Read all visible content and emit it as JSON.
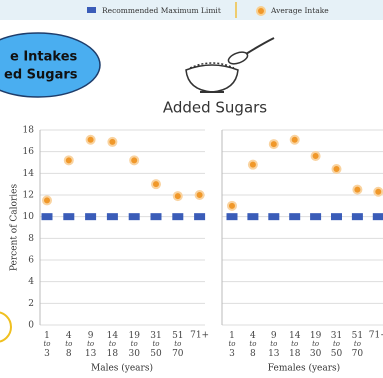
{
  "header": {
    "badge": [
      "e Intakes",
      "ed Sugars"
    ]
  },
  "title": "Added Sugars",
  "chart_data": [
    {
      "type": "scatter",
      "xlabel": "Males (years)",
      "ylabel": "Percent of Calories",
      "categories": [
        "1 to 3",
        "4 to 8",
        "9 to 13",
        "14 to 18",
        "19 to 30",
        "31 to 50",
        "51 to 70",
        "71+"
      ],
      "series": [
        {
          "name": "Recommended Maximum Limit",
          "color": "#3a5cb8",
          "values": [
            10,
            10,
            10,
            10,
            10,
            10,
            10,
            10
          ]
        },
        {
          "name": "Average Intake",
          "color": "#f0982a",
          "values": [
            11.5,
            15.2,
            17.1,
            16.9,
            15.2,
            13.0,
            11.9,
            12.0
          ]
        }
      ],
      "ylim": [
        0,
        18
      ],
      "yticks": [
        0,
        2,
        4,
        6,
        8,
        10,
        12,
        14,
        16,
        18
      ],
      "grid": true
    },
    {
      "type": "scatter",
      "xlabel": "Females (years)",
      "categories": [
        "1 to 3",
        "4 to 8",
        "9 to 13",
        "14 to 18",
        "19 to 30",
        "31 to 50",
        "51 to 70",
        "71+"
      ],
      "series": [
        {
          "color": "#3a5cb8",
          "values": [
            10,
            10,
            10,
            10,
            10,
            10,
            10,
            10
          ]
        },
        {
          "color": "#f0982a",
          "values": [
            11.0,
            14.8,
            16.7,
            17.1,
            15.6,
            14.4,
            12.5,
            12.3
          ]
        }
      ],
      "ylim": [
        0,
        18
      ],
      "yticks": [
        0,
        2,
        4,
        6,
        8,
        10,
        12,
        14,
        16,
        18
      ],
      "grid": true
    }
  ]
}
